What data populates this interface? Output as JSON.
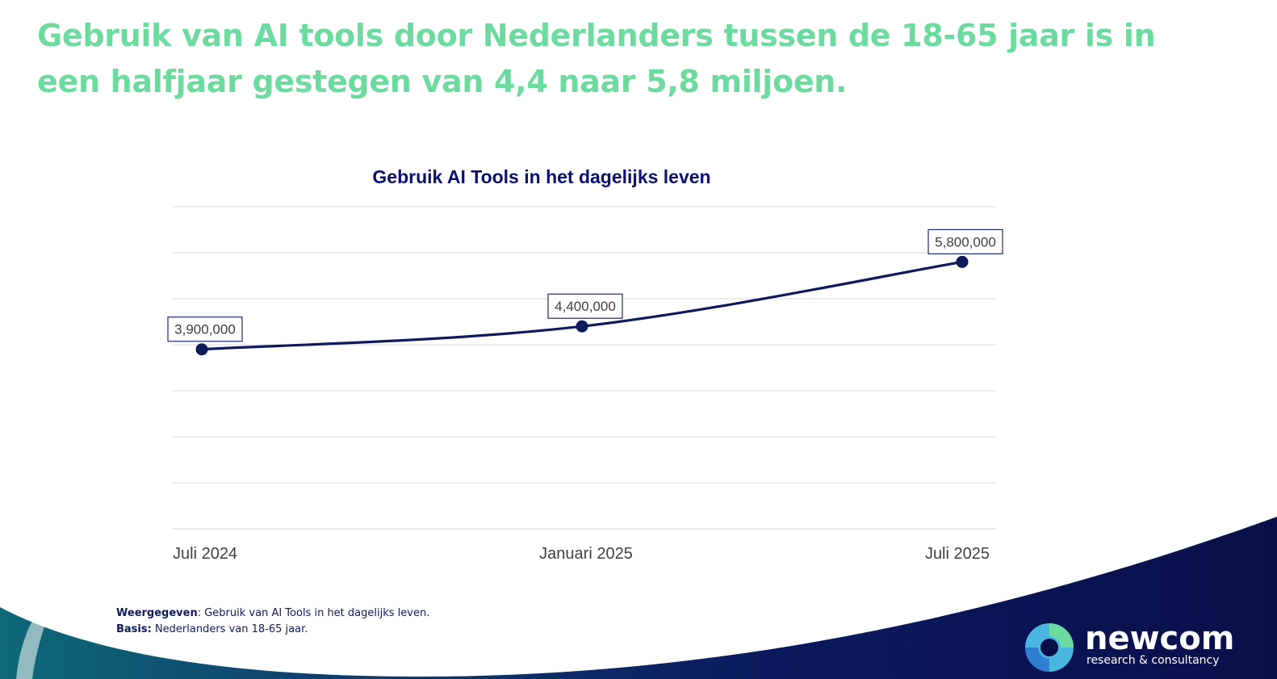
{
  "slide": {
    "title": "Gebruik van AI tools door Nederlanders tussen de 18-65 jaar is in een halfjaar gestegen van 4,4 naar 5,8 miljoen."
  },
  "chart_data": {
    "type": "line",
    "title": "Gebruik AI Tools in het dagelijks leven",
    "categories": [
      "Juli 2024",
      "Januari 2025",
      "Juli 2025"
    ],
    "series": [
      {
        "values": [
          3900000,
          4400000,
          5800000
        ]
      }
    ],
    "data_labels": [
      "3,900,000",
      "4,400,000",
      "5,800,000"
    ],
    "ylim": [
      0,
      7000000
    ],
    "grid": true,
    "legend": "none",
    "line_color": "#0F1A5C"
  },
  "footnote": {
    "shown_label": "Weergegeven",
    "shown_text": ": Gebruik van AI Tools in het dagelijks leven.",
    "basis_label": "Basis:",
    "basis_text": " Nederlanders van 18-65 jaar."
  },
  "logo": {
    "name": "newcom",
    "tagline": "research & consultancy"
  },
  "colors": {
    "title": "#6DDBA0",
    "chart_title": "#0A1070",
    "wave_dark": "#0A0F4A",
    "wave_teal": "#0E5F73"
  }
}
